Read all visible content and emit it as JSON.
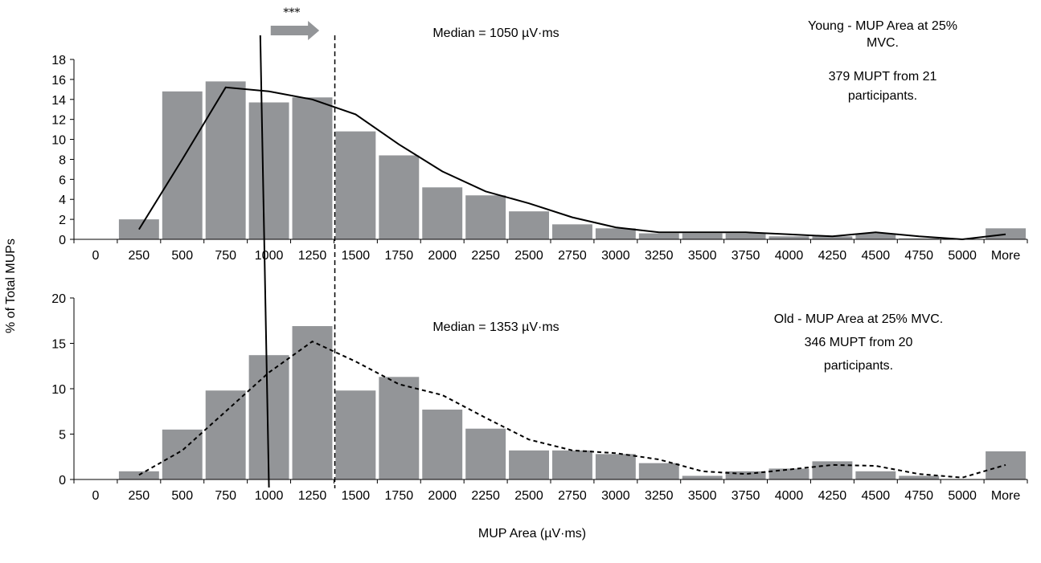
{
  "chart_data": [
    {
      "type": "bar",
      "categories": [
        "0",
        "250",
        "500",
        "750",
        "1000",
        "1250",
        "1500",
        "1750",
        "2000",
        "2250",
        "2500",
        "2750",
        "3000",
        "3250",
        "3500",
        "3750",
        "4000",
        "4250",
        "4500",
        "4750",
        "5000",
        "More"
      ],
      "bars": [
        0,
        2.0,
        14.8,
        15.8,
        13.7,
        14.2,
        10.8,
        8.4,
        5.2,
        4.4,
        2.8,
        1.5,
        1.1,
        0.6,
        0.6,
        0.6,
        0.3,
        0.3,
        0.6,
        0.1,
        0,
        1.1
      ],
      "curve": [
        null,
        1.0,
        8.0,
        15.2,
        14.8,
        14.0,
        12.5,
        9.5,
        6.8,
        4.8,
        3.6,
        2.2,
        1.2,
        0.7,
        0.7,
        0.7,
        0.5,
        0.3,
        0.7,
        0.3,
        0,
        0.5
      ],
      "curve_style": "solid",
      "ylim": [
        0,
        18
      ],
      "yticks": [
        "0",
        "2",
        "4",
        "6",
        "8",
        "10",
        "12",
        "14",
        "16",
        "18"
      ],
      "median_text": "Median = 1050 µV·ms",
      "annotation_lines": [
        "Young - MUP Area at 25%",
        "MVC.",
        "379 MUPT from 21",
        "participants."
      ]
    },
    {
      "type": "bar",
      "categories": [
        "0",
        "250",
        "500",
        "750",
        "1000",
        "1250",
        "1500",
        "1750",
        "2000",
        "2250",
        "2500",
        "2750",
        "3000",
        "3250",
        "3500",
        "3750",
        "4000",
        "4250",
        "4500",
        "4750",
        "5000",
        "More"
      ],
      "bars": [
        0,
        0.9,
        5.5,
        9.8,
        13.7,
        16.9,
        9.8,
        11.3,
        7.7,
        5.6,
        3.2,
        3.2,
        2.8,
        1.8,
        0.4,
        0.9,
        1.2,
        2.0,
        0.9,
        0.4,
        0,
        3.1
      ],
      "curve": [
        null,
        0.5,
        3.2,
        7.5,
        11.8,
        15.2,
        13.0,
        10.5,
        9.3,
        6.8,
        4.4,
        3.2,
        2.9,
        2.2,
        0.9,
        0.6,
        1.1,
        1.6,
        1.5,
        0.6,
        0.2,
        1.6
      ],
      "curve_style": "dashed",
      "ylim": [
        0,
        20
      ],
      "yticks": [
        "0",
        "5",
        "10",
        "15",
        "20"
      ],
      "median_text": "Median = 1353 µV·ms",
      "annotation_lines": [
        "Old - MUP Area at 25% MVC.",
        "346 MUPT from 20",
        "participants."
      ]
    }
  ],
  "significance": "***",
  "ylabel": "% of Total MUPs",
  "xlabel": "MUP Area (µV·ms)",
  "bar_color": "#939598",
  "line_color": "#000000"
}
